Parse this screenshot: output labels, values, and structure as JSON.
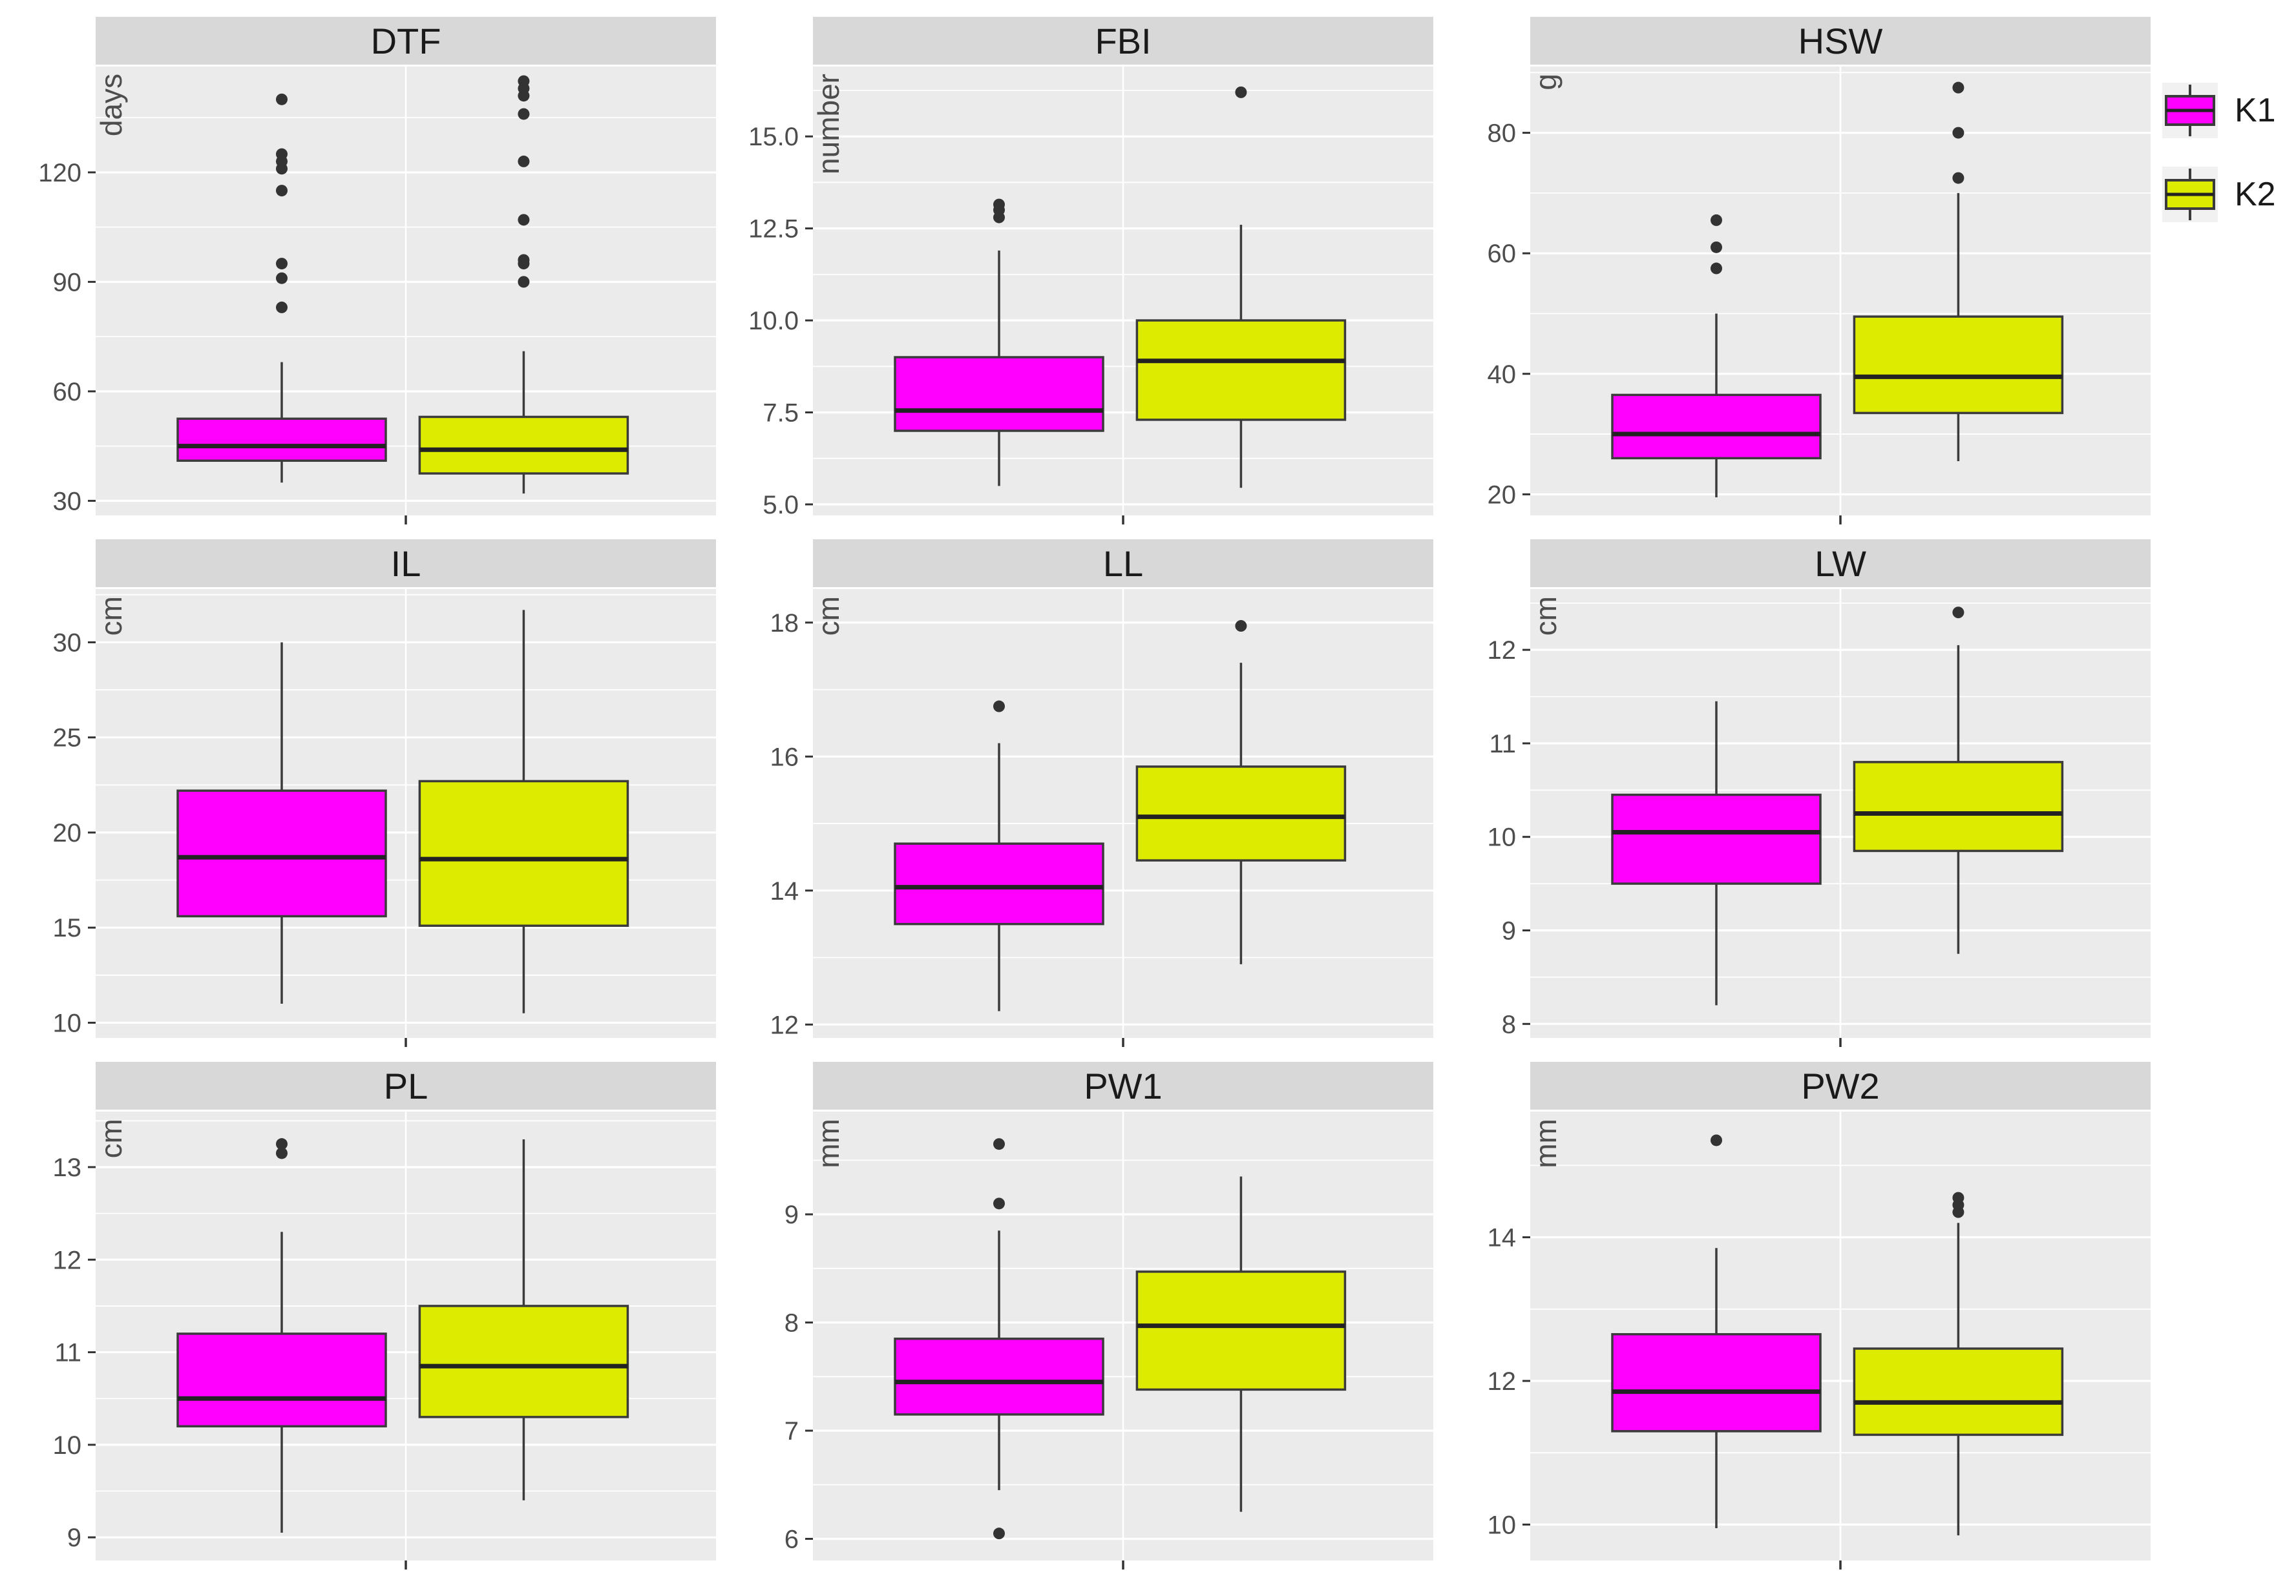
{
  "legend": {
    "position": "right-top",
    "items": [
      {
        "label": "K1",
        "color": "#FF00FF"
      },
      {
        "label": "K2",
        "color": "#DCEB00"
      }
    ]
  },
  "style": {
    "panel_bg": "#EBEBEB",
    "strip_bg": "#D8D8D8",
    "grid_color": "#FFFFFF",
    "box_stroke": "#3B3B3B",
    "median_color": "#222222",
    "outlier_color": "#333333",
    "tick_color": "#333333",
    "tick_text_color": "#4D4D4D",
    "axis_label_color": "#4D4D4D",
    "title_color": "#1A1A1A"
  },
  "chart_data": [
    {
      "type": "box",
      "title": "DTF",
      "ylabel": "days",
      "ylim": [
        26,
        149
      ],
      "yticks": [
        30,
        60,
        90,
        120
      ],
      "ytick_labels": [
        "30",
        "60",
        "90",
        "120"
      ],
      "grid": true,
      "legend_entries": [
        "K1",
        "K2"
      ],
      "series": [
        {
          "name": "K1",
          "low": 35,
          "q1": 41,
          "median": 45,
          "q3": 52.5,
          "high": 68,
          "outliers": [
            83,
            91,
            95,
            115,
            121,
            123,
            125,
            140
          ]
        },
        {
          "name": "K2",
          "low": 32,
          "q1": 37.5,
          "median": 44,
          "q3": 53,
          "high": 71,
          "outliers": [
            90,
            95,
            96,
            107,
            123,
            136,
            141,
            143,
            145
          ]
        }
      ]
    },
    {
      "type": "box",
      "title": "FBI",
      "ylabel": "number",
      "ylim": [
        4.7,
        16.9
      ],
      "yticks": [
        5,
        7.5,
        10,
        12.5,
        15
      ],
      "ytick_labels": [
        "5.0",
        "7.5",
        "10.0",
        "12.5",
        "15.0"
      ],
      "grid": true,
      "legend_entries": [
        "K1",
        "K2"
      ],
      "series": [
        {
          "name": "K1",
          "low": 5.5,
          "q1": 7.0,
          "median": 7.55,
          "q3": 9.0,
          "high": 11.9,
          "outliers": [
            12.8,
            13.0,
            13.15
          ]
        },
        {
          "name": "K2",
          "low": 5.45,
          "q1": 7.3,
          "median": 8.9,
          "q3": 10.0,
          "high": 12.6,
          "outliers": [
            16.2
          ]
        }
      ]
    },
    {
      "type": "box",
      "title": "HSW",
      "ylabel": "g",
      "ylim": [
        16.5,
        91
      ],
      "yticks": [
        20,
        40,
        60,
        80
      ],
      "ytick_labels": [
        "20",
        "40",
        "60",
        "80"
      ],
      "grid": true,
      "legend_entries": [
        "K1",
        "K2"
      ],
      "series": [
        {
          "name": "K1",
          "low": 19.5,
          "q1": 26,
          "median": 30,
          "q3": 36.5,
          "high": 50,
          "outliers": [
            57.5,
            61,
            65.5
          ]
        },
        {
          "name": "K2",
          "low": 25.5,
          "q1": 33.5,
          "median": 39.5,
          "q3": 49.5,
          "high": 70,
          "outliers": [
            72.5,
            80,
            87.5
          ]
        }
      ]
    },
    {
      "type": "box",
      "title": "IL",
      "ylabel": "cm",
      "ylim": [
        9.2,
        32.8
      ],
      "yticks": [
        10,
        15,
        20,
        25,
        30
      ],
      "ytick_labels": [
        "10",
        "15",
        "20",
        "25",
        "30"
      ],
      "grid": true,
      "legend_entries": [
        "K1",
        "K2"
      ],
      "series": [
        {
          "name": "K1",
          "low": 11,
          "q1": 15.6,
          "median": 18.7,
          "q3": 22.2,
          "high": 30,
          "outliers": []
        },
        {
          "name": "K2",
          "low": 10.5,
          "q1": 15.1,
          "median": 18.6,
          "q3": 22.7,
          "high": 31.7,
          "outliers": []
        }
      ]
    },
    {
      "type": "box",
      "title": "LL",
      "ylabel": "cm",
      "ylim": [
        11.8,
        18.5
      ],
      "yticks": [
        12,
        14,
        16,
        18
      ],
      "ytick_labels": [
        "12",
        "14",
        "16",
        "18"
      ],
      "grid": true,
      "legend_entries": [
        "K1",
        "K2"
      ],
      "series": [
        {
          "name": "K1",
          "low": 12.2,
          "q1": 13.5,
          "median": 14.05,
          "q3": 14.7,
          "high": 16.2,
          "outliers": [
            16.75
          ]
        },
        {
          "name": "K2",
          "low": 12.9,
          "q1": 14.45,
          "median": 15.1,
          "q3": 15.85,
          "high": 17.4,
          "outliers": [
            17.95
          ]
        }
      ]
    },
    {
      "type": "box",
      "title": "LW",
      "ylabel": "cm",
      "ylim": [
        7.85,
        12.65
      ],
      "yticks": [
        8,
        9,
        10,
        11,
        12
      ],
      "ytick_labels": [
        "8",
        "9",
        "10",
        "11",
        "12"
      ],
      "grid": true,
      "legend_entries": [
        "K1",
        "K2"
      ],
      "series": [
        {
          "name": "K1",
          "low": 8.2,
          "q1": 9.5,
          "median": 10.05,
          "q3": 10.45,
          "high": 11.45,
          "outliers": []
        },
        {
          "name": "K2",
          "low": 8.75,
          "q1": 9.85,
          "median": 10.25,
          "q3": 10.8,
          "high": 12.05,
          "outliers": [
            12.4
          ]
        }
      ]
    },
    {
      "type": "box",
      "title": "PL",
      "ylabel": "cm",
      "ylim": [
        8.75,
        13.6
      ],
      "yticks": [
        9,
        10,
        11,
        12,
        13
      ],
      "ytick_labels": [
        "9",
        "10",
        "11",
        "12",
        "13"
      ],
      "grid": true,
      "legend_entries": [
        "K1",
        "K2"
      ],
      "series": [
        {
          "name": "K1",
          "low": 9.05,
          "q1": 10.2,
          "median": 10.5,
          "q3": 11.2,
          "high": 12.3,
          "outliers": [
            13.15,
            13.25
          ]
        },
        {
          "name": "K2",
          "low": 9.4,
          "q1": 10.3,
          "median": 10.85,
          "q3": 11.5,
          "high": 13.3,
          "outliers": []
        }
      ]
    },
    {
      "type": "box",
      "title": "PW1",
      "ylabel": "mm",
      "ylim": [
        5.8,
        9.95
      ],
      "yticks": [
        6,
        7,
        8,
        9
      ],
      "ytick_labels": [
        "6",
        "7",
        "8",
        "9"
      ],
      "grid": true,
      "legend_entries": [
        "K1",
        "K2"
      ],
      "series": [
        {
          "name": "K1",
          "low": 6.45,
          "q1": 7.15,
          "median": 7.45,
          "q3": 7.85,
          "high": 8.85,
          "outliers": [
            6.05,
            9.1,
            9.65
          ]
        },
        {
          "name": "K2",
          "low": 6.25,
          "q1": 7.38,
          "median": 7.97,
          "q3": 8.47,
          "high": 9.35,
          "outliers": []
        }
      ]
    },
    {
      "type": "box",
      "title": "PW2",
      "ylabel": "mm",
      "ylim": [
        9.5,
        15.75
      ],
      "yticks": [
        10,
        12,
        14
      ],
      "ytick_labels": [
        "10",
        "12",
        "14"
      ],
      "grid": true,
      "legend_entries": [
        "K1",
        "K2"
      ],
      "series": [
        {
          "name": "K1",
          "low": 9.95,
          "q1": 11.3,
          "median": 11.85,
          "q3": 12.65,
          "high": 13.85,
          "outliers": [
            15.35
          ]
        },
        {
          "name": "K2",
          "low": 9.85,
          "q1": 11.25,
          "median": 11.7,
          "q3": 12.45,
          "high": 14.2,
          "outliers": [
            14.35,
            14.45,
            14.55
          ]
        }
      ]
    }
  ]
}
